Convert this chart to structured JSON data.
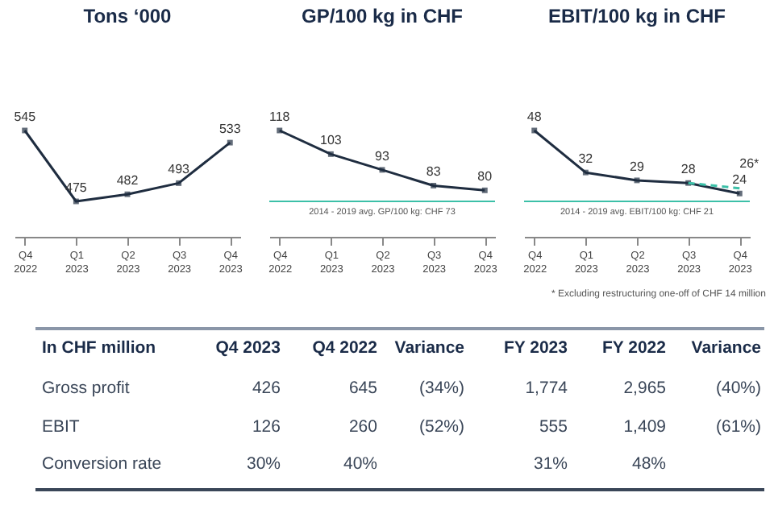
{
  "chart_data": [
    {
      "type": "line",
      "title": "Tons ‘000",
      "categories": [
        "Q4 2022",
        "Q1 2023",
        "Q2 2023",
        "Q3 2023",
        "Q4 2023"
      ],
      "data_labels": true,
      "marker": "square",
      "series": [
        {
          "color": "#1f2d40",
          "values": [
            545,
            475,
            482,
            493,
            533
          ]
        }
      ]
    },
    {
      "type": "line",
      "title": "GP/100 kg in CHF",
      "categories": [
        "Q4 2022",
        "Q1 2023",
        "Q2 2023",
        "Q3 2023",
        "Q4 2023"
      ],
      "data_labels": true,
      "marker": "square",
      "series": [
        {
          "color": "#1f2d40",
          "values": [
            118,
            103,
            93,
            83,
            80
          ]
        }
      ],
      "ref_lines": [
        {
          "axis": "y",
          "value": 73,
          "label": "2014 - 2019 avg. GP/100 kg: CHF 73",
          "color": "#3cc0a8"
        }
      ]
    },
    {
      "type": "line",
      "title": "EBIT/100 kg in CHF",
      "categories": [
        "Q4 2022",
        "Q1 2023",
        "Q2 2023",
        "Q3 2023",
        "Q4 2023"
      ],
      "data_labels": true,
      "marker": "square",
      "series": [
        {
          "color": "#1f2d40",
          "values": [
            48,
            32,
            29,
            28,
            24
          ]
        },
        {
          "color": "#3cc0a8",
          "values": [
            null,
            null,
            null,
            28,
            26
          ],
          "value_labels": [
            null,
            null,
            null,
            null,
            "26*"
          ],
          "line_style": "dashed",
          "marker": "none"
        }
      ],
      "ref_lines": [
        {
          "axis": "y",
          "value": 21,
          "label": "2014 - 2019 avg. EBIT/100 kg: CHF 21",
          "color": "#3cc0a8"
        }
      ],
      "annotations": [
        "* Excluding restructuring one-off of CHF 14 million"
      ]
    },
    {
      "type": "other",
      "title": "In CHF million",
      "categories": [
        "Q4 2023",
        "Q4 2022",
        "Variance",
        "FY 2023",
        "FY 2022",
        "Variance"
      ],
      "series": [
        {
          "name": "Gross profit",
          "values": [
            426,
            645,
            -34,
            1774,
            2965,
            -40
          ],
          "value_labels": [
            "426",
            "645",
            "(34%)",
            "1,774",
            "2,965",
            "(40%)"
          ]
        },
        {
          "name": "EBIT",
          "values": [
            126,
            260,
            -52,
            555,
            1409,
            -61
          ],
          "value_labels": [
            "126",
            "260",
            "(52%)",
            "555",
            "1,409",
            "(61%)"
          ]
        },
        {
          "name": "Conversion rate",
          "values": [
            30,
            40,
            null,
            31,
            48,
            null
          ],
          "value_labels": [
            "30%",
            "40%",
            null,
            "31%",
            "48%",
            null
          ]
        }
      ]
    }
  ]
}
